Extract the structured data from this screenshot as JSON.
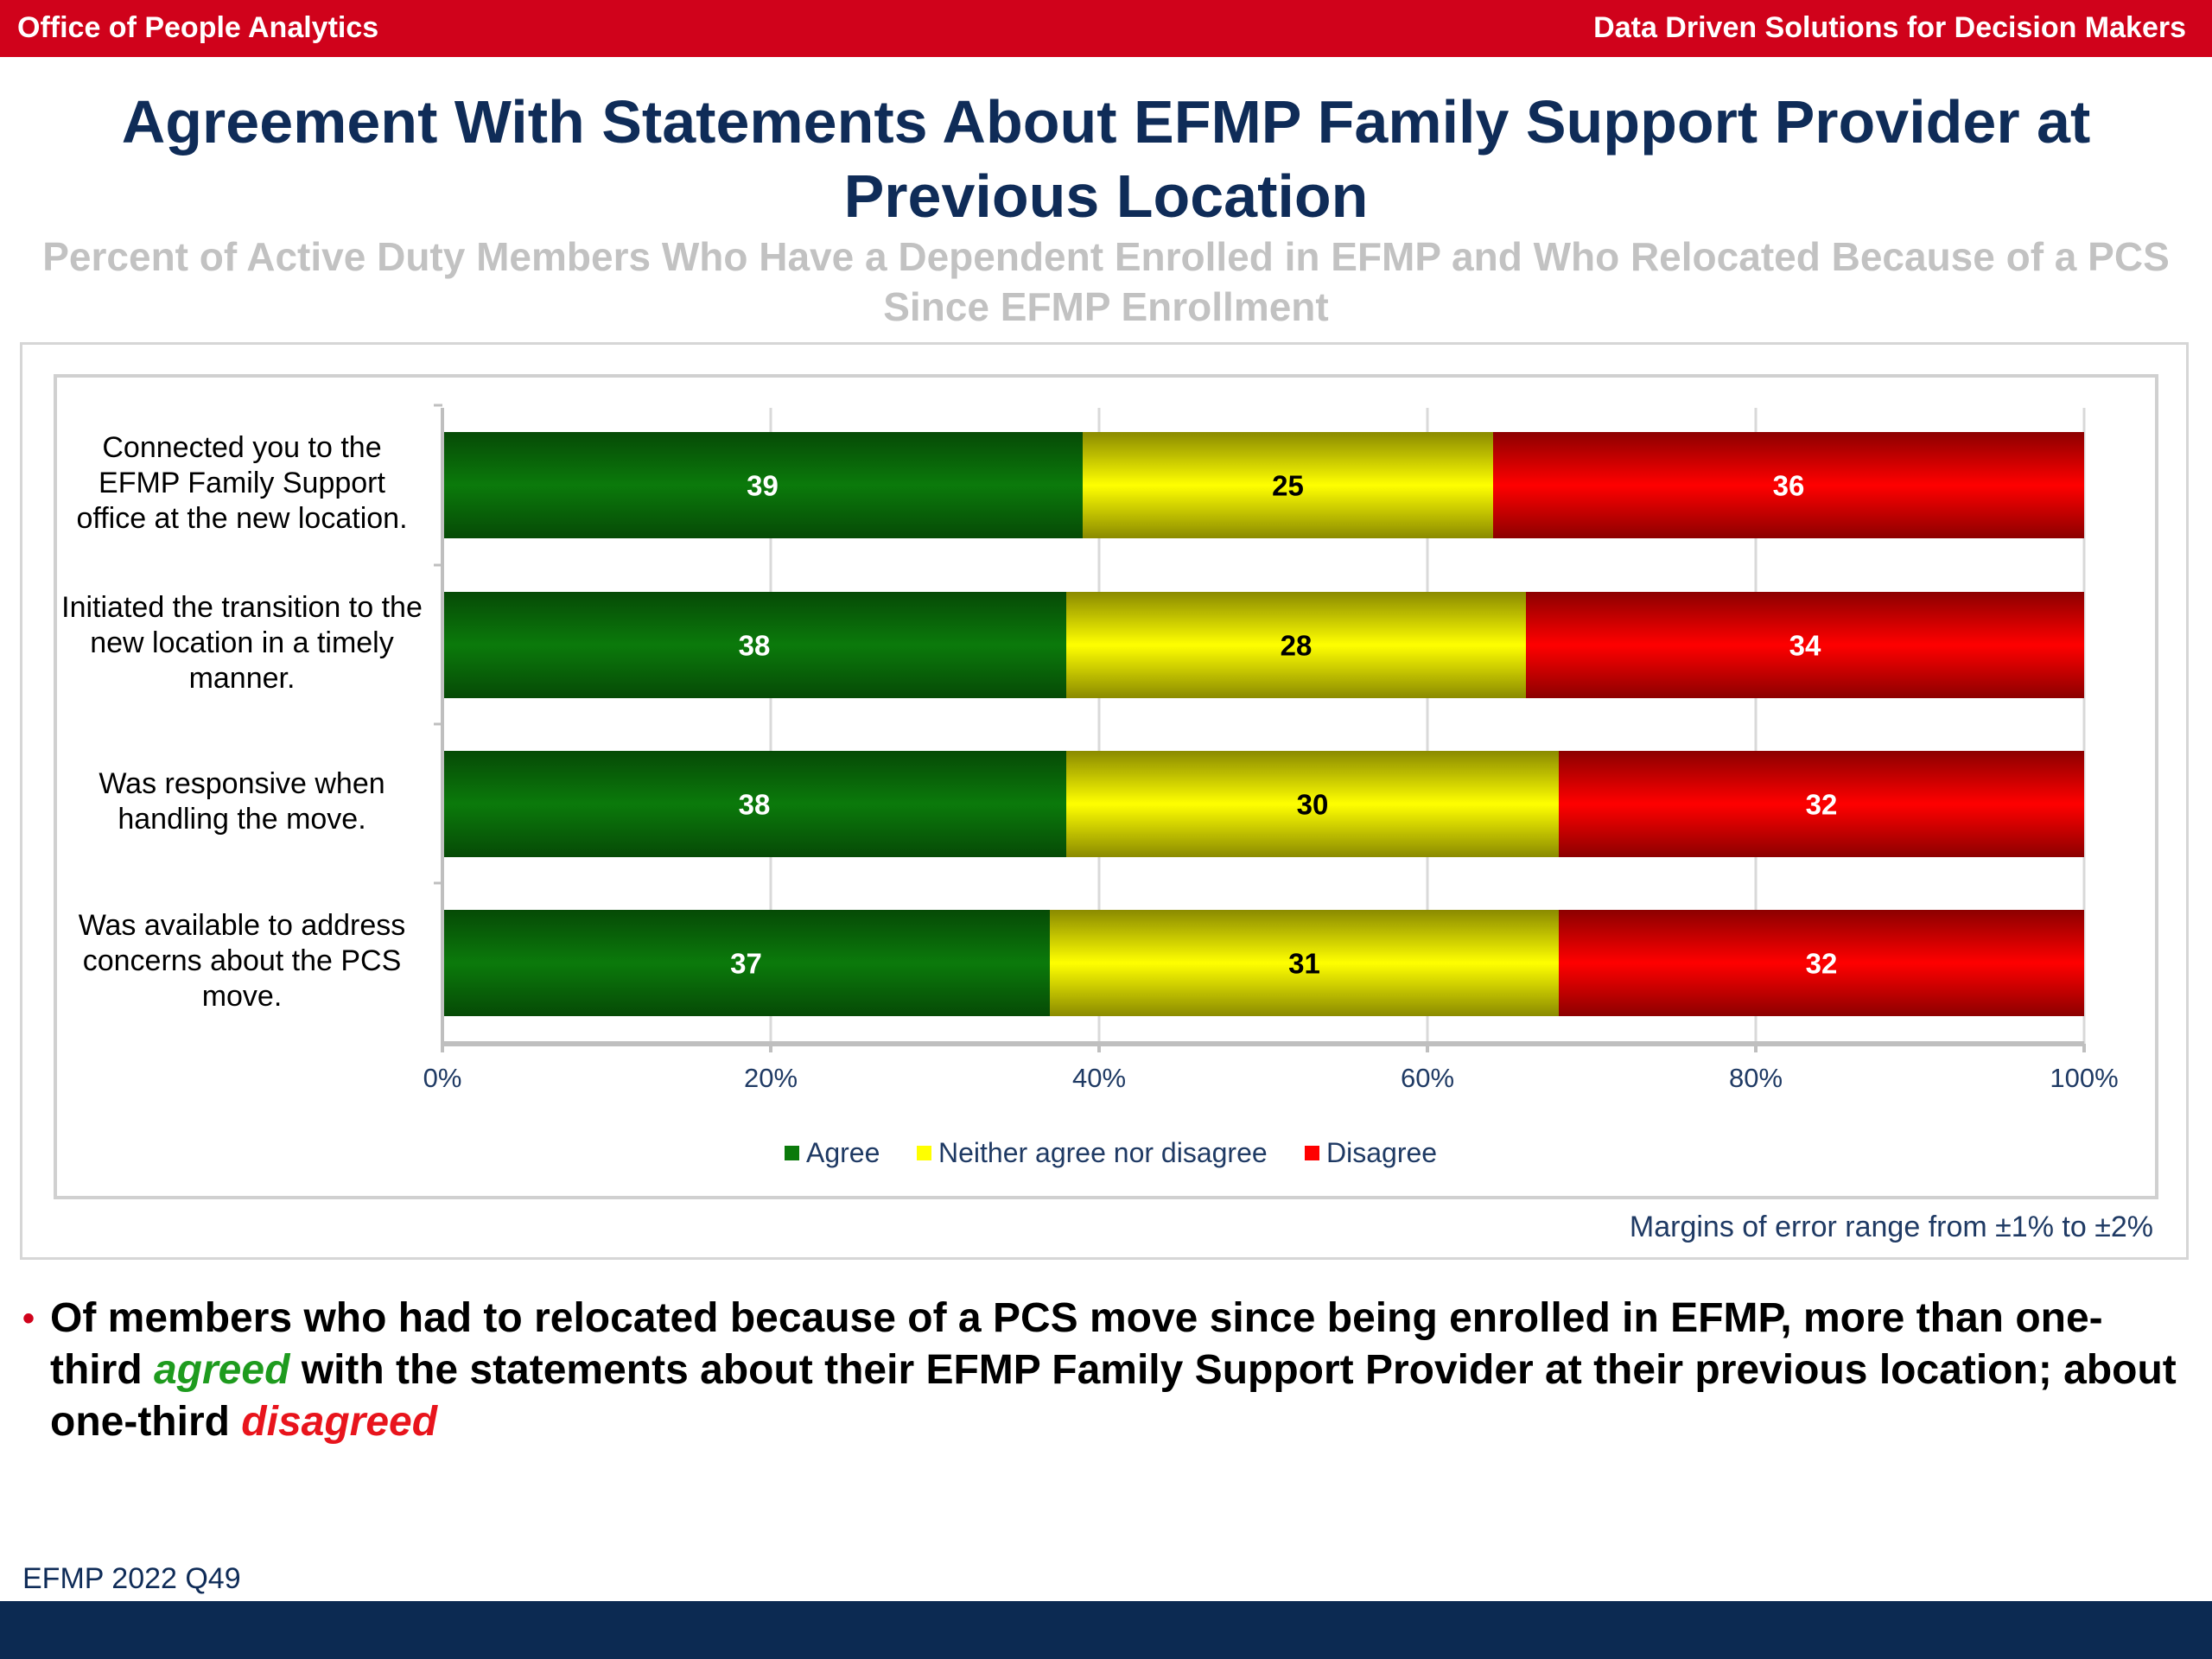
{
  "header": {
    "left": "Office of People Analytics",
    "right": "Data Driven Solutions for Decision Makers"
  },
  "title": "Agreement With Statements About EFMP Family Support Provider at Previous Location",
  "subtitle": "Percent of Active Duty Members Who Have a Dependent Enrolled in EFMP and Who Relocated Because of a PCS Since EFMP Enrollment",
  "chart_data": {
    "type": "bar",
    "orientation": "horizontal",
    "stacked": true,
    "categories": [
      "Connected you to the EFMP Family Support office at the new location.",
      "Initiated the transition to the new location in a timely manner.",
      "Was responsive when handling the move.",
      "Was available to address concerns about the PCS move."
    ],
    "series": [
      {
        "name": "Agree",
        "values": [
          39,
          38,
          38,
          37
        ],
        "color": "#0b7a0b",
        "label_color": "#ffffff"
      },
      {
        "name": "Neither agree nor disagree",
        "values": [
          25,
          28,
          30,
          31
        ],
        "color": "#ffff00",
        "label_color": "#000000"
      },
      {
        "name": "Disagree",
        "values": [
          36,
          34,
          32,
          32
        ],
        "color": "#ff0000",
        "label_color": "#ffffff"
      }
    ],
    "xlim": [
      0,
      100
    ],
    "x_ticks": [
      "0%",
      "20%",
      "40%",
      "60%",
      "80%",
      "100%"
    ],
    "grid": true,
    "legend_position": "bottom"
  },
  "note": "Margins of error range from ±1% to ±2%",
  "finding": {
    "part1": "Of members who had to relocated because of a PCS move since being enrolled in EFMP, more than one-third ",
    "agreed": "agreed",
    "part2": " with the statements about their EFMP Family Support Provider at their previous location; about one-third ",
    "disagreed": "disagreed"
  },
  "source": "EFMP 2022 Q49"
}
